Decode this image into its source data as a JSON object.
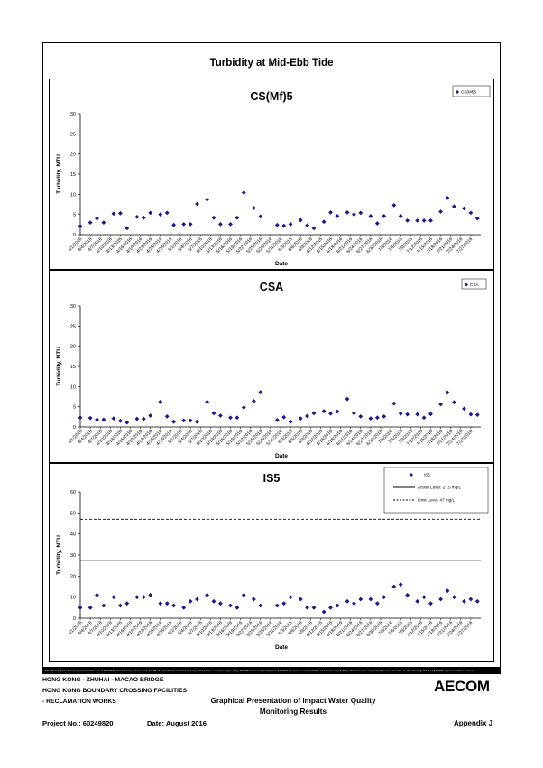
{
  "page_title": "Turbidity at Mid-Ebb Tide",
  "dates": [
    "4/1/2016",
    "4/4/2016",
    "4/7/2016",
    "4/10/2016",
    "4/13/2016",
    "4/16/2016",
    "4/19/2016",
    "4/22/2016",
    "4/25/2016",
    "4/28/2016",
    "5/1/2016",
    "5/4/2016",
    "5/7/2016",
    "5/10/2016",
    "5/13/2016",
    "5/16/2016",
    "5/19/2016",
    "5/22/2016",
    "5/25/2016",
    "5/28/2016",
    "5/31/2016",
    "6/3/2016",
    "6/6/2016",
    "6/9/2016",
    "6/12/2016",
    "6/15/2016",
    "6/18/2016",
    "6/21/2016",
    "6/24/2016",
    "6/27/2016",
    "6/30/2016",
    "7/3/2016",
    "7/6/2016",
    "7/9/2016",
    "7/12/2016",
    "7/15/2016",
    "7/18/2016",
    "7/21/2016",
    "7/24/2016",
    "7/27/2016"
  ],
  "chart_data": [
    {
      "type": "scatter",
      "title": "CS(Mf)5",
      "xlabel": "Date",
      "ylabel": "Turbidity, NTU",
      "ylim": [
        0,
        30
      ],
      "yticks": [
        0,
        5,
        10,
        15,
        20,
        25,
        30
      ],
      "xlim": [
        "4/1/2016",
        "7/30/2016"
      ],
      "legend_position": "top-right",
      "series": [
        {
          "name": "CS(Mf)5",
          "x": [
            "4/1/2016",
            "4/4/2016",
            "4/6/2016",
            "4/8/2016",
            "4/11/2016",
            "4/13/2016",
            "4/15/2016",
            "4/18/2016",
            "4/20/2016",
            "4/22/2016",
            "4/25/2016",
            "4/27/2016",
            "4/29/2016",
            "5/2/2016",
            "5/4/2016",
            "5/6/2016",
            "5/9/2016",
            "5/11/2016",
            "5/13/2016",
            "5/16/2016",
            "5/18/2016",
            "5/20/2016",
            "5/23/2016",
            "5/25/2016",
            "5/30/2016",
            "6/1/2016",
            "6/3/2016",
            "6/6/2016",
            "6/8/2016",
            "6/10/2016",
            "6/13/2016",
            "6/15/2016",
            "6/17/2016",
            "6/20/2016",
            "6/22/2016",
            "6/24/2016",
            "6/27/2016",
            "6/29/2016",
            "7/1/2016",
            "7/4/2016",
            "7/6/2016",
            "7/8/2016",
            "7/11/2016",
            "7/13/2016",
            "7/15/2016",
            "7/18/2016",
            "7/20/2016",
            "7/22/2016",
            "7/25/2016",
            "7/27/2016",
            "7/29/2016"
          ],
          "values": [
            2.1,
            3.0,
            4.0,
            3.0,
            5.2,
            5.3,
            1.6,
            4.4,
            4.2,
            5.4,
            5.0,
            5.4,
            2.4,
            2.6,
            2.6,
            7.6,
            8.7,
            4.2,
            2.6,
            2.6,
            4.2,
            10.4,
            6.6,
            4.5,
            2.4,
            2.2,
            2.6,
            3.6,
            2.3,
            1.6,
            3.2,
            5.5,
            4.6,
            5.5,
            5.0,
            5.4,
            4.6,
            2.8,
            4.6,
            7.3,
            4.6,
            3.5,
            3.5,
            3.5,
            3.5,
            5.7,
            9.1,
            7.0,
            6.5,
            5.4,
            4.0
          ]
        }
      ]
    },
    {
      "type": "scatter",
      "title": "CSA",
      "xlabel": "Date",
      "ylabel": "Turbidity, NTU",
      "ylim": [
        0,
        30
      ],
      "yticks": [
        0,
        5,
        10,
        15,
        20,
        25,
        30
      ],
      "xlim": [
        "4/1/2016",
        "7/30/2016"
      ],
      "legend_position": "top-right",
      "series": [
        {
          "name": "CSA",
          "x": [
            "4/1/2016",
            "4/4/2016",
            "4/6/2016",
            "4/8/2016",
            "4/11/2016",
            "4/13/2016",
            "4/15/2016",
            "4/18/2016",
            "4/20/2016",
            "4/22/2016",
            "4/25/2016",
            "4/27/2016",
            "4/29/2016",
            "5/2/2016",
            "5/4/2016",
            "5/6/2016",
            "5/9/2016",
            "5/11/2016",
            "5/13/2016",
            "5/16/2016",
            "5/18/2016",
            "5/20/2016",
            "5/23/2016",
            "5/25/2016",
            "5/30/2016",
            "6/1/2016",
            "6/3/2016",
            "6/6/2016",
            "6/8/2016",
            "6/10/2016",
            "6/13/2016",
            "6/15/2016",
            "6/17/2016",
            "6/20/2016",
            "6/22/2016",
            "6/24/2016",
            "6/27/2016",
            "6/29/2016",
            "7/1/2016",
            "7/4/2016",
            "7/6/2016",
            "7/8/2016",
            "7/11/2016",
            "7/13/2016",
            "7/15/2016",
            "7/18/2016",
            "7/20/2016",
            "7/22/2016",
            "7/25/2016",
            "7/27/2016",
            "7/29/2016"
          ],
          "values": [
            2.3,
            2.2,
            1.8,
            1.8,
            2.1,
            1.5,
            1.1,
            2.0,
            2.0,
            2.8,
            6.2,
            2.6,
            1.3,
            1.6,
            1.6,
            1.3,
            6.2,
            3.4,
            2.8,
            2.3,
            2.3,
            4.8,
            6.4,
            8.6,
            1.7,
            2.4,
            1.3,
            2.1,
            2.7,
            3.4,
            3.9,
            3.3,
            3.8,
            6.9,
            3.4,
            2.6,
            2.1,
            2.3,
            2.6,
            5.8,
            3.3,
            3.1,
            3.1,
            2.3,
            3.2,
            5.6,
            8.5,
            6.1,
            4.5,
            3.1,
            3.0
          ]
        }
      ]
    },
    {
      "type": "scatter",
      "title": "IS5",
      "xlabel": "Date",
      "ylabel": "Turbidity, NTU",
      "ylim": [
        0,
        60
      ],
      "yticks": [
        0,
        10,
        20,
        30,
        40,
        50,
        60
      ],
      "xlim": [
        "4/1/2016",
        "7/30/2016"
      ],
      "legend_position": "top-right",
      "series": [
        {
          "name": "IS5",
          "x": [
            "4/1/2016",
            "4/4/2016",
            "4/6/2016",
            "4/8/2016",
            "4/11/2016",
            "4/13/2016",
            "4/15/2016",
            "4/18/2016",
            "4/20/2016",
            "4/22/2016",
            "4/25/2016",
            "4/27/2016",
            "4/29/2016",
            "5/2/2016",
            "5/4/2016",
            "5/6/2016",
            "5/9/2016",
            "5/11/2016",
            "5/13/2016",
            "5/16/2016",
            "5/18/2016",
            "5/20/2016",
            "5/23/2016",
            "5/25/2016",
            "5/30/2016",
            "6/1/2016",
            "6/3/2016",
            "6/6/2016",
            "6/8/2016",
            "6/10/2016",
            "6/13/2016",
            "6/15/2016",
            "6/17/2016",
            "6/20/2016",
            "6/22/2016",
            "6/24/2016",
            "6/27/2016",
            "6/29/2016",
            "7/1/2016",
            "7/4/2016",
            "7/6/2016",
            "7/8/2016",
            "7/11/2016",
            "7/13/2016",
            "7/15/2016",
            "7/18/2016",
            "7/20/2016",
            "7/22/2016",
            "7/25/2016",
            "7/27/2016",
            "7/29/2016"
          ],
          "values": [
            5,
            5,
            11,
            6,
            10,
            6,
            7,
            10,
            10,
            11,
            7,
            7,
            6,
            5,
            8,
            9,
            11,
            8,
            7,
            6,
            5,
            11,
            9,
            6,
            6,
            7,
            10,
            9,
            5,
            5,
            3,
            5,
            6,
            8,
            7,
            9,
            9,
            7,
            10,
            15,
            16,
            11,
            8,
            10,
            7,
            9,
            13,
            10,
            8,
            9,
            8
          ]
        }
      ],
      "reference_lines": [
        {
          "name": "Action Level: 27.5 mg/L",
          "value": 27.5,
          "style": "solid"
        },
        {
          "name": "Limit Level: 47 mg/L",
          "value": 47,
          "style": "dashed"
        }
      ]
    }
  ],
  "footer": {
    "line1": "HONG KONG - ZHUHAI - MACAO BRIDGE",
    "line2": "HONG KONG BOUNDARY CROSSING FACILITIES",
    "line3": "- RECLAMATION WORKS",
    "title_line1": "Graphical Presentation of Impact Water Quality",
    "title_line2": "Monitoring Results",
    "project": "Project No.: 60249820",
    "date": "Date: August 2016",
    "appendix": "Appendix J",
    "logo": "AECOM",
    "disclaimer": "This Drawing has been prepared for the use of AECOM's client. It may not be used, modified, reproduced or relied upon by third parties, except as agreed by AECOM or as required by law. AECOM accepts no responsibility, and denies any liability whatsoever, to any party that uses or relies on this drawing without AECOM's express written consent."
  },
  "colors": {
    "marker": "#1a1a8c",
    "line": "#000000"
  }
}
